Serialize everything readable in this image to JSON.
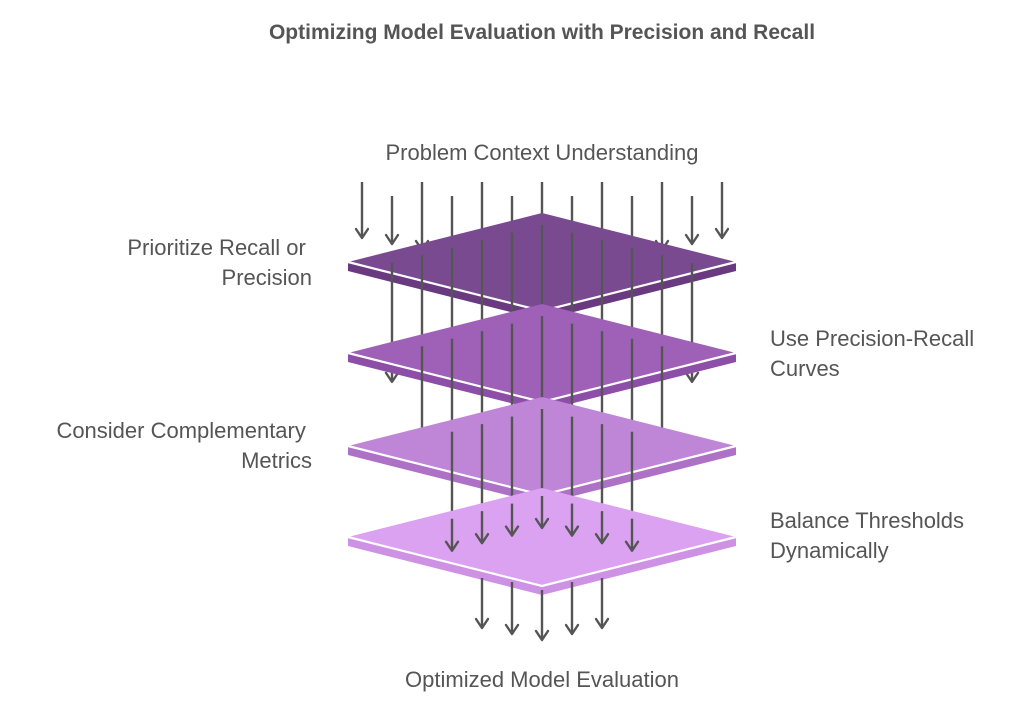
{
  "title": "Optimizing Model Evaluation with Precision and Recall",
  "top_label": "Problem Context Understanding",
  "bottom_label": "Optimized Model Evaluation",
  "layers": [
    {
      "label_lines": [
        "Prioritize Recall or",
        "Precision"
      ],
      "side": "left",
      "top_color": "#7a4a90",
      "side_color": "#6a3a80"
    },
    {
      "label_lines": [
        "Use Precision-Recall",
        "Curves"
      ],
      "side": "right",
      "top_color": "#9f60b7",
      "side_color": "#8c4ea6"
    },
    {
      "label_lines": [
        "Consider Complementary",
        "Metrics"
      ],
      "side": "left",
      "top_color": "#bf85d6",
      "side_color": "#ad72c6"
    },
    {
      "label_lines": [
        "Balance Thresholds",
        "Dynamically"
      ],
      "side": "right",
      "top_color": "#dca2f2",
      "side_color": "#cd92e3"
    }
  ],
  "colors": {
    "text": "#555555",
    "arrow": "#555555",
    "edge": "#ffffff"
  }
}
